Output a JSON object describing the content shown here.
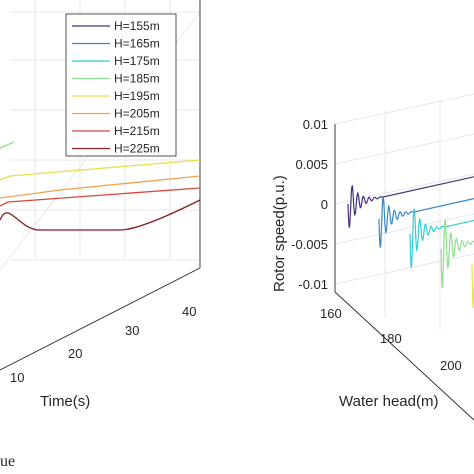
{
  "chart_data": [
    {
      "type": "line",
      "title": "",
      "xlabel": "Time(s)",
      "x_ticks": [
        "10",
        "20",
        "30",
        "40"
      ],
      "xlim": [
        0,
        40
      ],
      "zlabel": "",
      "legend_placement": "top-right",
      "grid": true,
      "series": [
        {
          "name": "H=155m",
          "color": "#46307e"
        },
        {
          "name": "H=165m",
          "color": "#3a87c6"
        },
        {
          "name": "H=175m",
          "color": "#2fd0d8"
        },
        {
          "name": "H=185m",
          "color": "#8ee08c"
        },
        {
          "name": "H=195m",
          "color": "#e6e04a"
        },
        {
          "name": "H=205m",
          "color": "#f0a24e"
        },
        {
          "name": "H=215m",
          "color": "#d8483e"
        },
        {
          "name": "H=225m",
          "color": "#8c1c1c"
        }
      ]
    },
    {
      "type": "line",
      "title": "",
      "ylabel": "Rotor speed(p.u.)",
      "xlabel": "Water head(m)",
      "y_ticks": [
        "0.01",
        "0.005",
        "0",
        "-0.005",
        "-0.01"
      ],
      "ylim": [
        -0.01,
        0.01
      ],
      "x_ticks": [
        "160",
        "180",
        "200"
      ],
      "grid": true,
      "series": [
        {
          "head": 155,
          "color": "#46307e"
        },
        {
          "head": 165,
          "color": "#3a87c6"
        },
        {
          "head": 175,
          "color": "#2fd0d8"
        },
        {
          "head": 185,
          "color": "#8ee08c"
        },
        {
          "head": 195,
          "color": "#e6e04a"
        }
      ]
    }
  ],
  "caption_fragment": "ue"
}
